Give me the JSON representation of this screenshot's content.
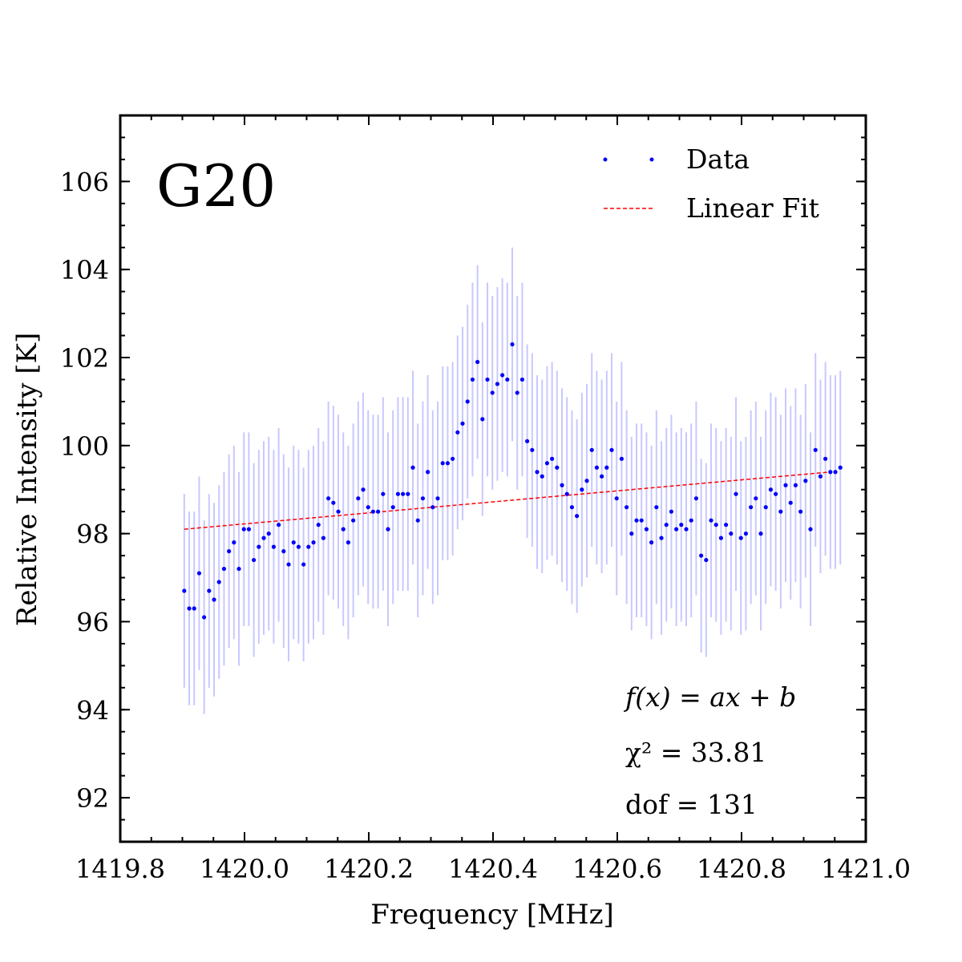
{
  "panel_label": "G20",
  "legend": {
    "data_label": "Data",
    "fit_label": "Linear Fit",
    "placement": "top-right"
  },
  "fit_info": {
    "model": "f(x) = ax + b",
    "chi2": "χ² = 33.81",
    "dof": "dof = 131"
  },
  "colors": {
    "data": "#0000ff",
    "error_bar": "#c8c8ff",
    "fit": "#ff0000",
    "axes": "#000000"
  },
  "chart_data": {
    "type": "scatter",
    "xlabel": "Frequency [MHz]",
    "ylabel": "Relative Intensity [K]",
    "xlim": [
      1419.8,
      1421.0
    ],
    "ylim": [
      91.0,
      107.5
    ],
    "x_ticks": [
      "1419.8",
      "1420.0",
      "1420.2",
      "1420.4",
      "1420.6",
      "1420.8",
      "1421.0"
    ],
    "y_ticks": [
      "92",
      "94",
      "96",
      "98",
      "100",
      "102",
      "104",
      "106"
    ],
    "x_tick_values": [
      1419.8,
      1420.0,
      1420.2,
      1420.4,
      1420.6,
      1420.8,
      1421.0
    ],
    "y_tick_values": [
      92,
      94,
      96,
      98,
      100,
      102,
      104,
      106
    ],
    "grid": false,
    "series": [
      {
        "name": "Data",
        "x_start": 1419.903,
        "x_step": 0.008,
        "y": [
          96.7,
          96.3,
          96.3,
          97.1,
          96.1,
          96.7,
          96.5,
          96.9,
          97.2,
          97.6,
          97.8,
          97.2,
          98.1,
          98.1,
          97.4,
          97.7,
          97.9,
          98.0,
          97.7,
          98.2,
          97.6,
          97.3,
          97.8,
          97.7,
          97.3,
          97.7,
          97.8,
          98.2,
          97.9,
          98.8,
          98.7,
          98.5,
          98.1,
          97.8,
          98.3,
          98.8,
          99.0,
          98.6,
          98.5,
          98.5,
          98.9,
          98.1,
          98.6,
          98.9,
          98.9,
          98.9,
          99.5,
          98.3,
          98.8,
          99.4,
          98.6,
          98.8,
          99.6,
          99.6,
          99.7,
          100.3,
          100.5,
          101.0,
          101.5,
          101.9,
          100.6,
          101.5,
          101.2,
          101.4,
          101.6,
          101.5,
          102.3,
          101.2,
          101.5,
          100.1,
          99.9,
          99.4,
          99.3,
          99.6,
          99.7,
          99.5,
          99.1,
          98.9,
          98.6,
          98.4,
          99.0,
          99.2,
          99.9,
          99.5,
          99.3,
          99.5,
          99.9,
          98.8,
          99.7,
          98.6,
          98.0,
          98.3,
          98.3,
          98.1,
          97.8,
          98.6,
          97.9,
          98.2,
          98.5,
          98.1,
          98.2,
          98.1,
          98.3,
          98.8,
          97.5,
          97.4,
          98.3,
          98.2,
          97.9,
          98.2,
          98.0,
          98.9,
          97.9,
          98.0,
          98.6,
          98.8,
          98.0,
          98.6,
          99.0,
          98.9,
          98.5,
          99.1,
          98.7,
          99.1,
          98.5,
          99.2,
          98.1,
          99.9,
          99.3,
          99.7,
          99.4,
          99.4,
          99.5
        ],
        "yerr": 2.2
      },
      {
        "name": "Linear Fit",
        "x": [
          1419.903,
          1420.943
        ],
        "y": [
          98.1,
          99.4
        ]
      }
    ]
  }
}
